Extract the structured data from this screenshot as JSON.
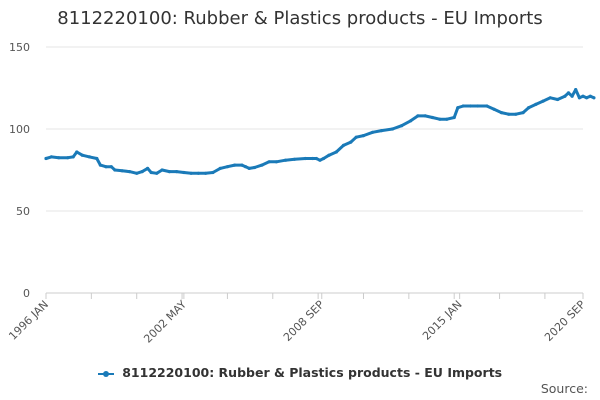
{
  "chart_data": {
    "type": "line",
    "title": "8112220100: Rubber & Plastics products - EU Imports",
    "xlabel": "",
    "ylabel": "",
    "x_range": [
      "1996-01",
      "2020-09"
    ],
    "x_tick_labels": [
      "1996 JAN",
      "2002 MAY",
      "2008 SEP",
      "2015 JAN",
      "2020 SEP"
    ],
    "ylim": [
      0,
      150
    ],
    "y_ticks": [
      0,
      50,
      100,
      150
    ],
    "grid": "horizontal",
    "legend_position": "bottom",
    "series": [
      {
        "name": "8112220100: Rubber & Plastics products - EU Imports",
        "color": "#1a7ab8",
        "points": [
          [
            "1996-01",
            82
          ],
          [
            "1996-04",
            83
          ],
          [
            "1996-08",
            82.5
          ],
          [
            "1997-01",
            82.5
          ],
          [
            "1997-04",
            83
          ],
          [
            "1997-06",
            86
          ],
          [
            "1997-09",
            84
          ],
          [
            "1998-01",
            83
          ],
          [
            "1998-05",
            82
          ],
          [
            "1998-07",
            78
          ],
          [
            "1998-10",
            77
          ],
          [
            "1999-01",
            77
          ],
          [
            "1999-03",
            75
          ],
          [
            "1999-07",
            74.5
          ],
          [
            "1999-11",
            74
          ],
          [
            "2000-03",
            73
          ],
          [
            "2000-06",
            74
          ],
          [
            "2000-09",
            76
          ],
          [
            "2000-11",
            73.5
          ],
          [
            "2001-02",
            73
          ],
          [
            "2001-05",
            75
          ],
          [
            "2001-09",
            74
          ],
          [
            "2002-01",
            74
          ],
          [
            "2002-05",
            73.5
          ],
          [
            "2002-09",
            73
          ],
          [
            "2003-01",
            73
          ],
          [
            "2003-05",
            73
          ],
          [
            "2003-09",
            73.5
          ],
          [
            "2004-01",
            76
          ],
          [
            "2004-05",
            77
          ],
          [
            "2004-09",
            78
          ],
          [
            "2005-01",
            78
          ],
          [
            "2005-03",
            77
          ],
          [
            "2005-05",
            76
          ],
          [
            "2005-08",
            76.5
          ],
          [
            "2005-12",
            78
          ],
          [
            "2006-04",
            80
          ],
          [
            "2006-08",
            80
          ],
          [
            "2007-01",
            81
          ],
          [
            "2007-06",
            81.5
          ],
          [
            "2007-12",
            82
          ],
          [
            "2008-04",
            82
          ],
          [
            "2008-06",
            82
          ],
          [
            "2008-08",
            81
          ],
          [
            "2008-10",
            82
          ],
          [
            "2009-01",
            84
          ],
          [
            "2009-05",
            86
          ],
          [
            "2009-09",
            90
          ],
          [
            "2010-01",
            92
          ],
          [
            "2010-04",
            95
          ],
          [
            "2010-08",
            96
          ],
          [
            "2011-01",
            98
          ],
          [
            "2011-06",
            99
          ],
          [
            "2011-12",
            100
          ],
          [
            "2012-05",
            102
          ],
          [
            "2012-10",
            105
          ],
          [
            "2013-02",
            108
          ],
          [
            "2013-06",
            108
          ],
          [
            "2013-10",
            107
          ],
          [
            "2014-02",
            106
          ],
          [
            "2014-06",
            106
          ],
          [
            "2014-10",
            107
          ],
          [
            "2014-12",
            113
          ],
          [
            "2015-03",
            114
          ],
          [
            "2015-07",
            114
          ],
          [
            "2015-11",
            114
          ],
          [
            "2016-04",
            114
          ],
          [
            "2016-08",
            112
          ],
          [
            "2016-12",
            110
          ],
          [
            "2017-04",
            109
          ],
          [
            "2017-08",
            109
          ],
          [
            "2017-12",
            110
          ],
          [
            "2018-03",
            113
          ],
          [
            "2018-07",
            115
          ],
          [
            "2018-11",
            117
          ],
          [
            "2019-03",
            119
          ],
          [
            "2019-07",
            118
          ],
          [
            "2019-11",
            120
          ],
          [
            "2020-01",
            122
          ],
          [
            "2020-03",
            120
          ],
          [
            "2020-05",
            124
          ],
          [
            "2020-07",
            119
          ],
          [
            "2020-09",
            120
          ],
          [
            "2020-11",
            119
          ],
          [
            "2021-01",
            120
          ],
          [
            "2021-03",
            119
          ]
        ]
      }
    ]
  },
  "source_label": "Source:"
}
